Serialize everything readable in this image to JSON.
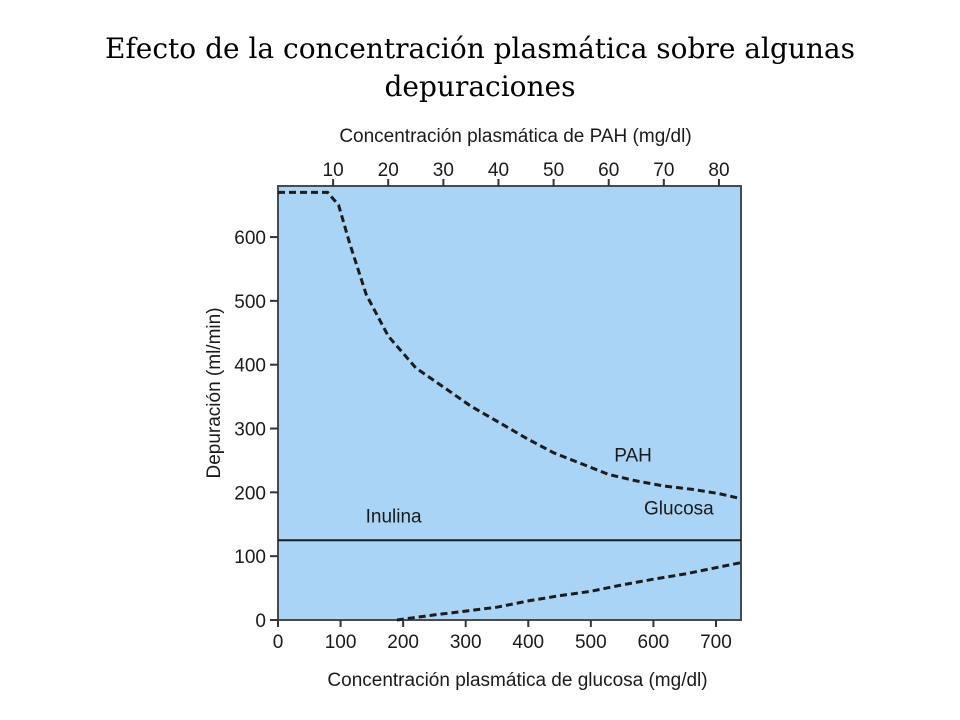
{
  "slide": {
    "title": "Efecto de la concentración plasmática sobre algunas depuraciones"
  },
  "chart_data": {
    "type": "line",
    "title": "",
    "ylabel": "Depuración (ml/min)",
    "xlabel_bottom": "Concentración plasmática de glucosa (mg/dl)",
    "xlabel_top": "Concentración plasmática de PAH (mg/dl)",
    "bottom_axis": {
      "lim": [
        0,
        740
      ],
      "ticks": [
        0,
        100,
        200,
        300,
        400,
        500,
        600,
        700
      ]
    },
    "top_axis": {
      "lim": [
        0,
        84
      ],
      "ticks": [
        10,
        20,
        30,
        40,
        50,
        60,
        70,
        80
      ]
    },
    "y_axis": {
      "lim": [
        0,
        680
      ],
      "ticks": [
        0,
        100,
        200,
        300,
        400,
        500,
        600
      ]
    },
    "grid": false,
    "background": "#a9d4f5",
    "line_color": "#1c1c1c",
    "series": [
      {
        "name": "PAH",
        "axis": "top",
        "style": "dashed",
        "points": [
          [
            0,
            670
          ],
          [
            9,
            670
          ],
          [
            11,
            650
          ],
          [
            13,
            590
          ],
          [
            16,
            510
          ],
          [
            20,
            445
          ],
          [
            25,
            395
          ],
          [
            30,
            365
          ],
          [
            35,
            335
          ],
          [
            40,
            310
          ],
          [
            45,
            285
          ],
          [
            50,
            262
          ],
          [
            55,
            245
          ],
          [
            60,
            228
          ],
          [
            65,
            218
          ],
          [
            70,
            210
          ],
          [
            75,
            205
          ],
          [
            80,
            198
          ],
          [
            84,
            190
          ]
        ]
      },
      {
        "name": "Inulina",
        "axis": "bottom",
        "style": "solid",
        "points": [
          [
            0,
            125
          ],
          [
            740,
            125
          ]
        ]
      },
      {
        "name": "Glucosa",
        "axis": "bottom",
        "style": "dashed",
        "points": [
          [
            190,
            0
          ],
          [
            250,
            8
          ],
          [
            300,
            14
          ],
          [
            350,
            20
          ],
          [
            400,
            30
          ],
          [
            450,
            38
          ],
          [
            500,
            45
          ],
          [
            550,
            55
          ],
          [
            600,
            64
          ],
          [
            650,
            72
          ],
          [
            700,
            82
          ],
          [
            740,
            90
          ]
        ]
      }
    ],
    "annotations": [
      {
        "text": "PAH",
        "x": 61,
        "y": 248,
        "axis": "top"
      },
      {
        "text": "Glucosa",
        "x": 585,
        "y": 165,
        "axis": "bottom"
      },
      {
        "text": "Inulina",
        "x": 140,
        "y": 153,
        "axis": "bottom"
      }
    ]
  }
}
